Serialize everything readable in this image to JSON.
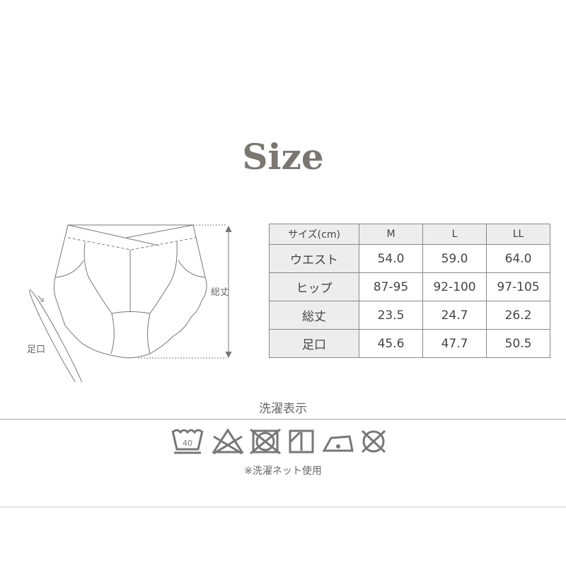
{
  "title": "Size",
  "diagram": {
    "length_label": "総丈",
    "leg_label": "足口"
  },
  "table": {
    "header": [
      "サイズ(cm)",
      "M",
      "L",
      "LL"
    ],
    "rows": [
      [
        "ウエスト",
        "54.0",
        "59.0",
        "64.0"
      ],
      [
        "ヒップ",
        "87-95",
        "92-100",
        "97-105"
      ],
      [
        "総丈",
        "23.5",
        "24.7",
        "26.2"
      ],
      [
        "足口",
        "45.6",
        "47.7",
        "50.5"
      ]
    ]
  },
  "care": {
    "heading": "洗濯表示",
    "wash_temp": "40",
    "icons": [
      "wash-40-icon",
      "no-bleach-icon",
      "no-tumble-dry-icon",
      "shade-drip-dry-icon",
      "low-iron-icon",
      "no-dry-clean-icon"
    ],
    "note": "※洗濯ネット使用"
  },
  "colors": {
    "title": "#7b7770",
    "icon": "#777777"
  }
}
